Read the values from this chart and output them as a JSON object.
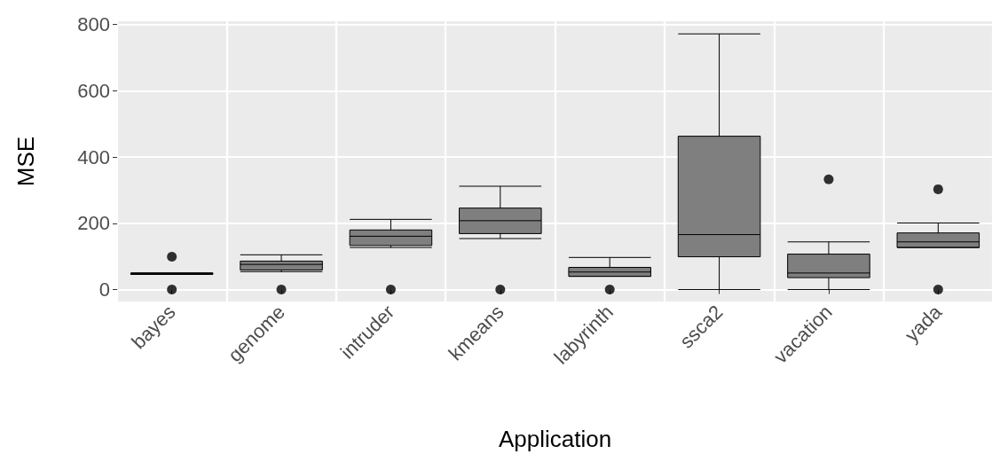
{
  "chart_data": {
    "type": "box",
    "xlabel": "Application",
    "ylabel": "MSE",
    "categories": [
      "bayes",
      "genome",
      "intruder",
      "kmeans",
      "labyrinth",
      "ssca2",
      "vacation",
      "yada"
    ],
    "boxes": [
      {
        "low": 46,
        "q1": 46,
        "median": 48,
        "q3": 50,
        "high": 50,
        "outliers": [
          0,
          99
        ]
      },
      {
        "low": 54,
        "q1": 59,
        "median": 76,
        "q3": 86,
        "high": 105,
        "outliers": [
          0
        ]
      },
      {
        "low": 127,
        "q1": 133,
        "median": 161,
        "q3": 180,
        "high": 212,
        "outliers": [
          0
        ]
      },
      {
        "low": 154,
        "q1": 169,
        "median": 208,
        "q3": 246,
        "high": 312,
        "outliers": [
          0
        ]
      },
      {
        "low": 40,
        "q1": 40,
        "median": 53,
        "q3": 67,
        "high": 97,
        "outliers": [
          0
        ]
      },
      {
        "low": 0,
        "q1": 99,
        "median": 166,
        "q3": 463,
        "high": 772
      },
      {
        "low": 0,
        "q1": 36,
        "median": 50,
        "q3": 107,
        "high": 144,
        "outliers": [
          333
        ]
      },
      {
        "low": 127,
        "q1": 127,
        "median": 144,
        "q3": 171,
        "high": 201,
        "outliers": [
          0,
          303
        ]
      }
    ],
    "color": "#7f7f7f",
    "ylim": [
      -36,
      810
    ],
    "yticks": [
      0,
      200,
      400,
      600,
      800
    ],
    "grid": true
  }
}
